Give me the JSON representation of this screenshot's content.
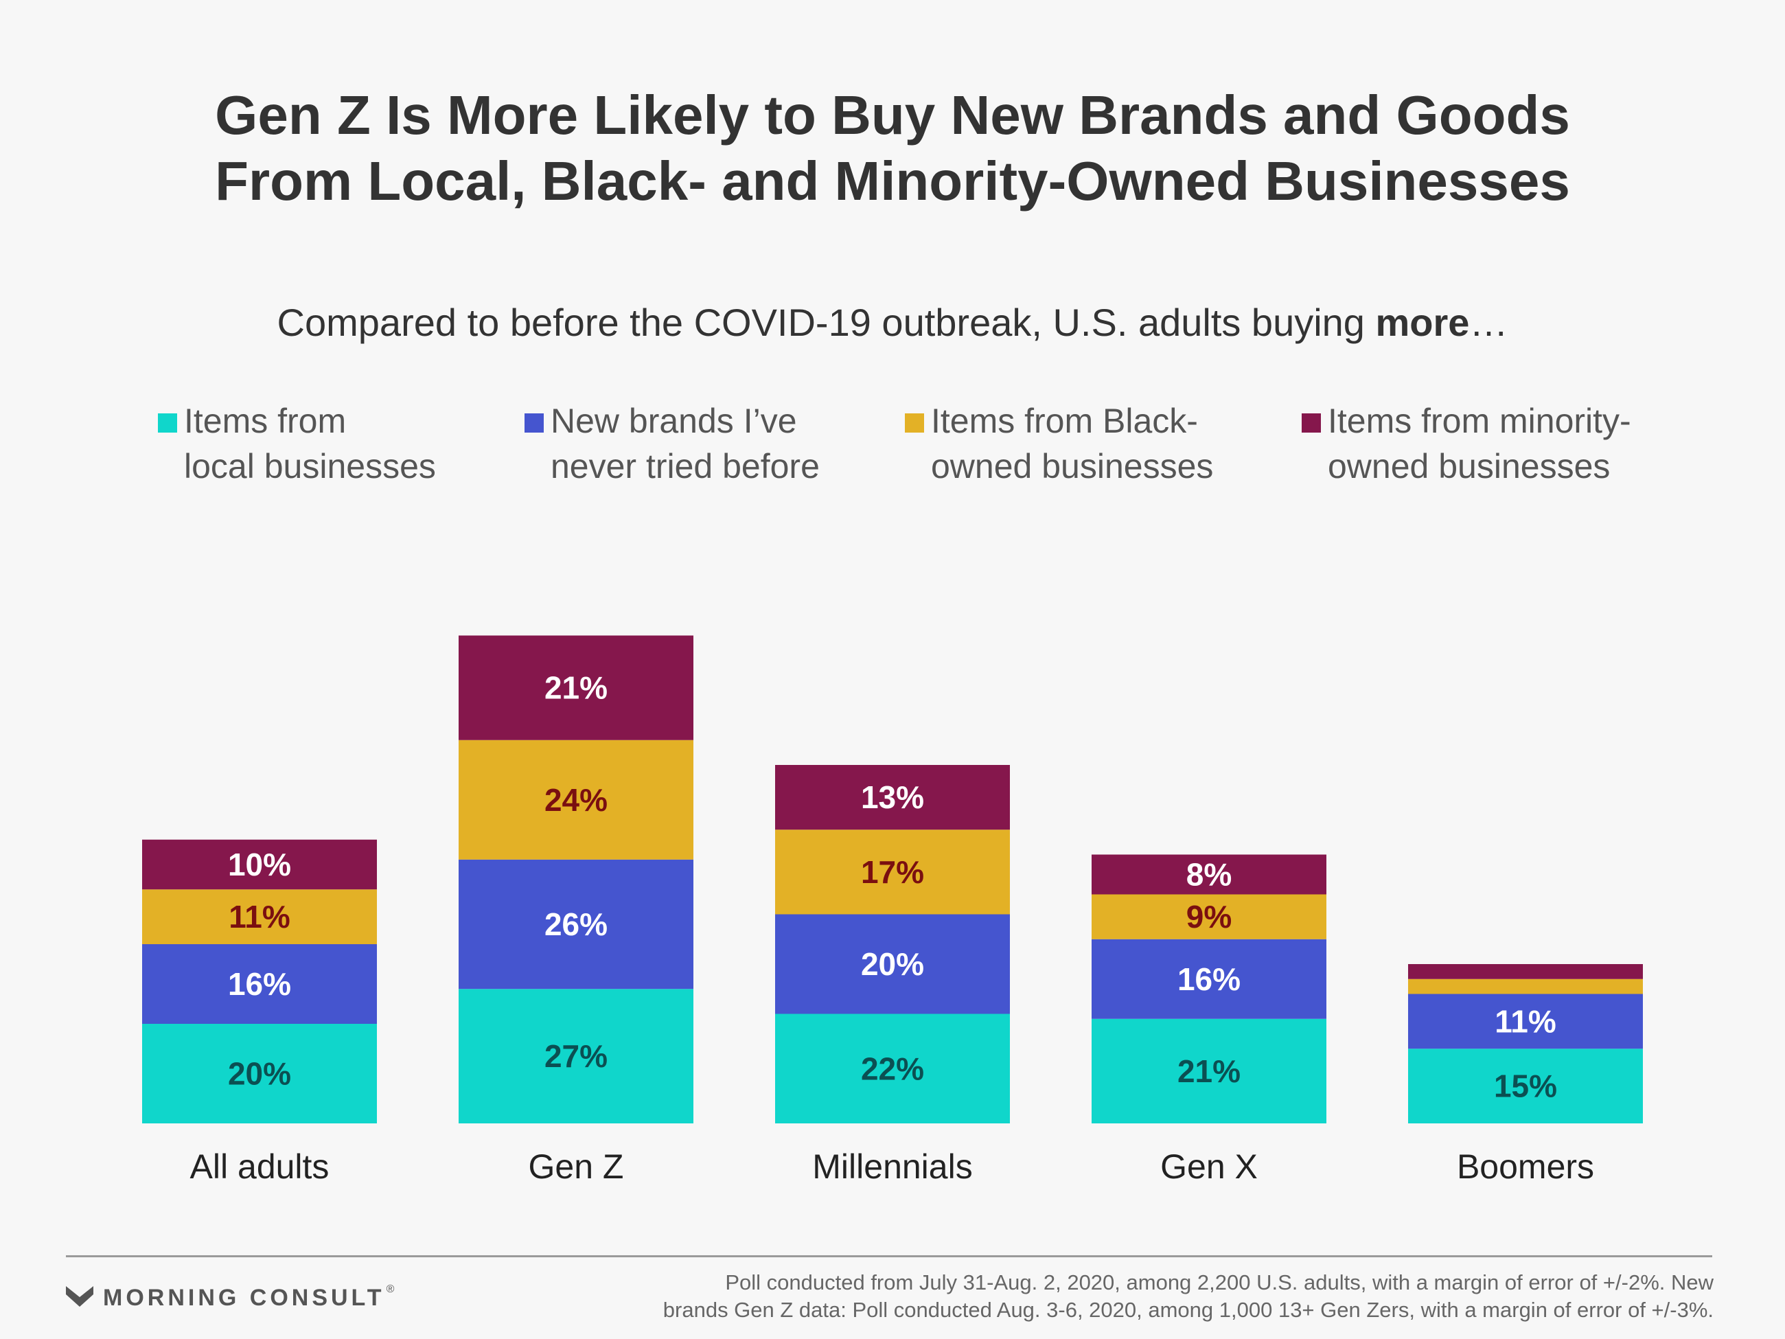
{
  "title": {
    "line1": "Gen Z Is More Likely to Buy New Brands and Goods",
    "line2": "From Local, Black- and Minority-Owned Businesses"
  },
  "subtitle": {
    "prefix": "Compared to before the COVID-19 outbreak, U.S. adults buying ",
    "emphasis": "more",
    "suffix": "…"
  },
  "legend": [
    {
      "line1": "Items from",
      "line2": "local businesses",
      "color": "#10d6cb"
    },
    {
      "line1": "New brands I’ve",
      "line2": "never tried before",
      "color": "#4555cf"
    },
    {
      "line1": "Items from Black-",
      "line2": "owned businesses",
      "color": "#e3b126"
    },
    {
      "line1": "Items from minority-",
      "line2": "owned businesses",
      "color": "#85174c"
    }
  ],
  "chart_data": {
    "type": "bar",
    "stacked": true,
    "categories": [
      "All adults",
      "Gen Z",
      "Millennials",
      "Gen X",
      "Boomers"
    ],
    "series": [
      {
        "name": "Items from local businesses",
        "values": [
          20,
          27,
          22,
          21,
          15
        ],
        "color": "#10d6cb",
        "label_color": "#0b4f52"
      },
      {
        "name": "New brands I’ve never tried before",
        "values": [
          16,
          26,
          20,
          16,
          11
        ],
        "color": "#4555cf",
        "label_color": "#ffffff"
      },
      {
        "name": "Items from Black-owned businesses",
        "values": [
          11,
          24,
          17,
          9,
          3
        ],
        "color": "#e3b126",
        "label_color": "#7a0f10"
      },
      {
        "name": "Items from minority-owned businesses",
        "values": [
          10,
          21,
          13,
          8,
          3
        ],
        "color": "#85174c",
        "label_color": "#ffffff"
      }
    ],
    "data_labels": [
      [
        "20%",
        "27%",
        "22%",
        "21%",
        "15%"
      ],
      [
        "16%",
        "26%",
        "20%",
        "16%",
        "11%"
      ],
      [
        "11%",
        "24%",
        "17%",
        "9%",
        ""
      ],
      [
        "10%",
        "21%",
        "13%",
        "8%",
        ""
      ]
    ],
    "ylim": [
      0,
      100
    ],
    "grid": false,
    "legend_position": "top"
  },
  "footer": {
    "logo_text": "MORNING CONSULT",
    "logo_mark": "®",
    "source_line1": "Poll conducted from July 31-Aug. 2, 2020, among 2,200 U.S. adults, with a margin of error of +/-2%. New",
    "source_line2": "brands Gen Z data: Poll conducted Aug. 3-6, 2020, among 1,000 13+ Gen Zers, with a margin of error of +/-3%."
  }
}
